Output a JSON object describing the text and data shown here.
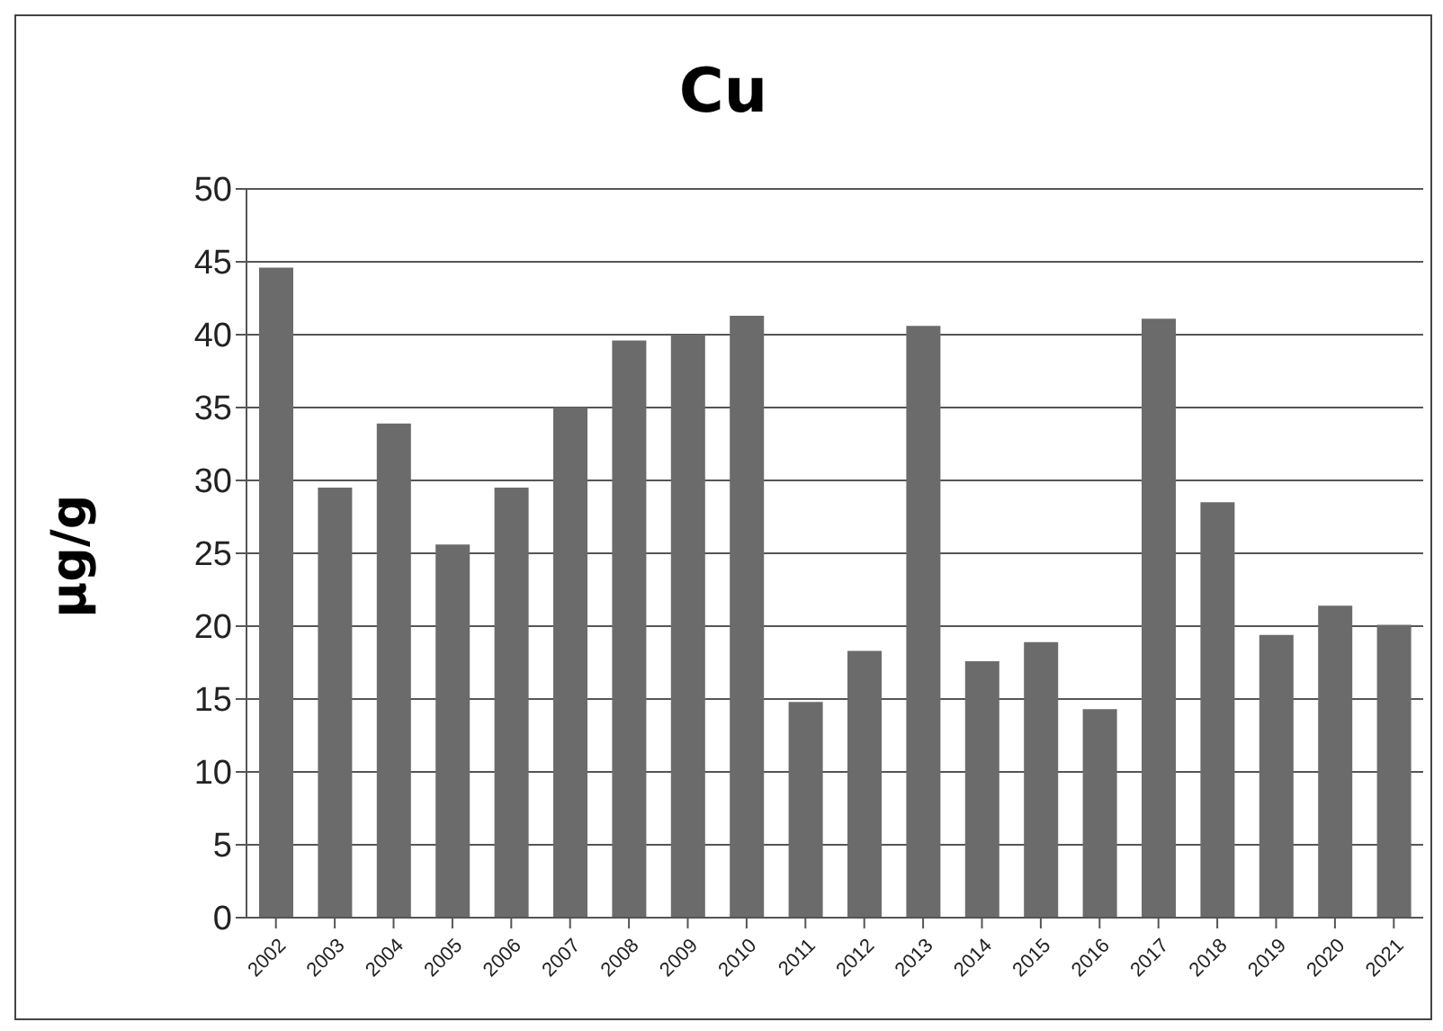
{
  "chart_data": {
    "type": "bar",
    "title": "Cu",
    "ylabel": "µg/g",
    "categories": [
      "2002",
      "2003",
      "2004",
      "2005",
      "2006",
      "2007",
      "2008",
      "2009",
      "2010",
      "2011",
      "2012",
      "2013",
      "2014",
      "2015",
      "2016",
      "2017",
      "2018",
      "2019",
      "2020",
      "2021"
    ],
    "values": [
      44.6,
      29.5,
      33.9,
      25.6,
      29.5,
      35,
      39.6,
      40,
      41.3,
      14.8,
      18.3,
      40.6,
      17.6,
      18.9,
      14.3,
      41.1,
      28.5,
      19.4,
      21.4,
      20.1
    ],
    "color": "#6b6b6b",
    "ylim": [
      0,
      50
    ],
    "yticks": [
      0,
      5,
      10,
      15,
      20,
      25,
      30,
      35,
      40,
      45,
      50
    ],
    "grid": "y"
  }
}
